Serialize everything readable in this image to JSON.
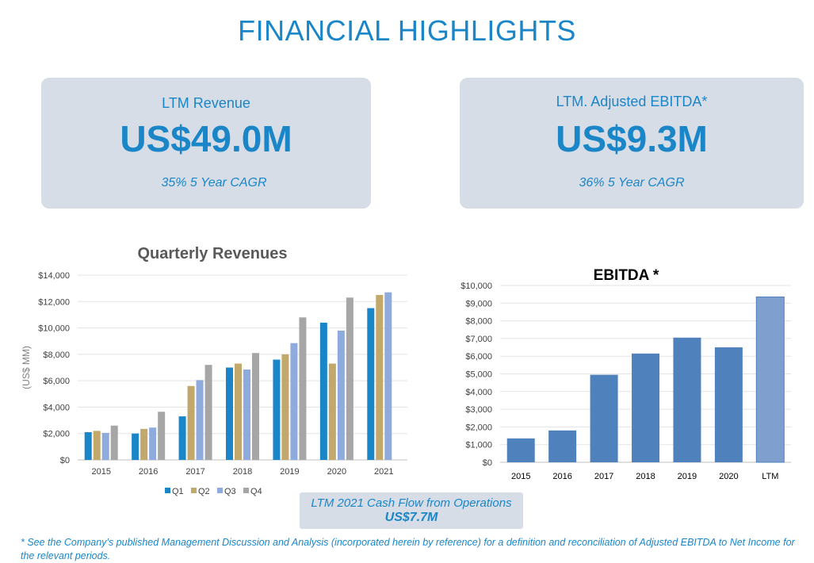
{
  "page_title": "FINANCIAL HIGHLIGHTS",
  "cards": {
    "revenue": {
      "label": "LTM Revenue",
      "value": "US$49.0M",
      "cagr": "35% 5 Year CAGR"
    },
    "ebitda": {
      "label": "LTM. Adjusted EBITDA*",
      "value": "US$9.3M",
      "cagr": "36% 5 Year CAGR"
    }
  },
  "cash_flow": {
    "label": "LTM 2021 Cash Flow from Operations",
    "value": "US$7.7M"
  },
  "footnote": "* See the Company’s published Management Discussion and Analysis (incorporated herein by reference) for a definition and reconciliation of Adjusted EBITDA to Net Income for the relevant periods.",
  "colors": {
    "accent": "#1a86c8",
    "card_bg": "#d6dde6",
    "q1": "#1a86c8",
    "q2": "#c3a86b",
    "q3": "#8faadc",
    "q4": "#a6a6a6",
    "ebitda_bar": "#4f81bd",
    "ltm_bar": "#7f9fcf"
  },
  "chart_data": [
    {
      "type": "bar",
      "title": "Quarterly Revenues",
      "ylabel": "(US$ MM)",
      "xlabel": "",
      "categories": [
        "2015",
        "2016",
        "2017",
        "2018",
        "2019",
        "2020",
        "2021"
      ],
      "series": [
        {
          "name": "Q1",
          "values": [
            2100,
            2000,
            3300,
            7000,
            7600,
            10400,
            11500
          ]
        },
        {
          "name": "Q2",
          "values": [
            2200,
            2350,
            5600,
            7300,
            8000,
            7300,
            12500
          ]
        },
        {
          "name": "Q3",
          "values": [
            2050,
            2450,
            6050,
            6850,
            8850,
            9800,
            12700
          ]
        },
        {
          "name": "Q4",
          "values": [
            2600,
            3650,
            7200,
            8100,
            10800,
            12300,
            null
          ]
        }
      ],
      "ylim": [
        0,
        14000
      ],
      "yticks": [
        0,
        2000,
        4000,
        6000,
        8000,
        10000,
        12000,
        14000
      ],
      "ytick_labels": [
        "$0",
        "$2,000",
        "$4,000",
        "$6,000",
        "$8,000",
        "$10,000",
        "$12,000",
        "$14,000"
      ],
      "grid": true,
      "legend": "bottom"
    },
    {
      "type": "bar",
      "title": "EBITDA *",
      "xlabel": "",
      "ylabel": "",
      "categories": [
        "2015",
        "2016",
        "2017",
        "2018",
        "2019",
        "2020",
        "LTM"
      ],
      "values": [
        1350,
        1800,
        4950,
        6150,
        7050,
        6500,
        9350
      ],
      "ylim": [
        0,
        10000
      ],
      "yticks": [
        0,
        1000,
        2000,
        3000,
        4000,
        5000,
        6000,
        7000,
        8000,
        9000,
        10000
      ],
      "ytick_labels": [
        "$0",
        "$1,000",
        "$2,000",
        "$3,000",
        "$4,000",
        "$5,000",
        "$6,000",
        "$7,000",
        "$8,000",
        "$9,000",
        "$10,000"
      ],
      "grid": true,
      "legend": "none"
    }
  ]
}
